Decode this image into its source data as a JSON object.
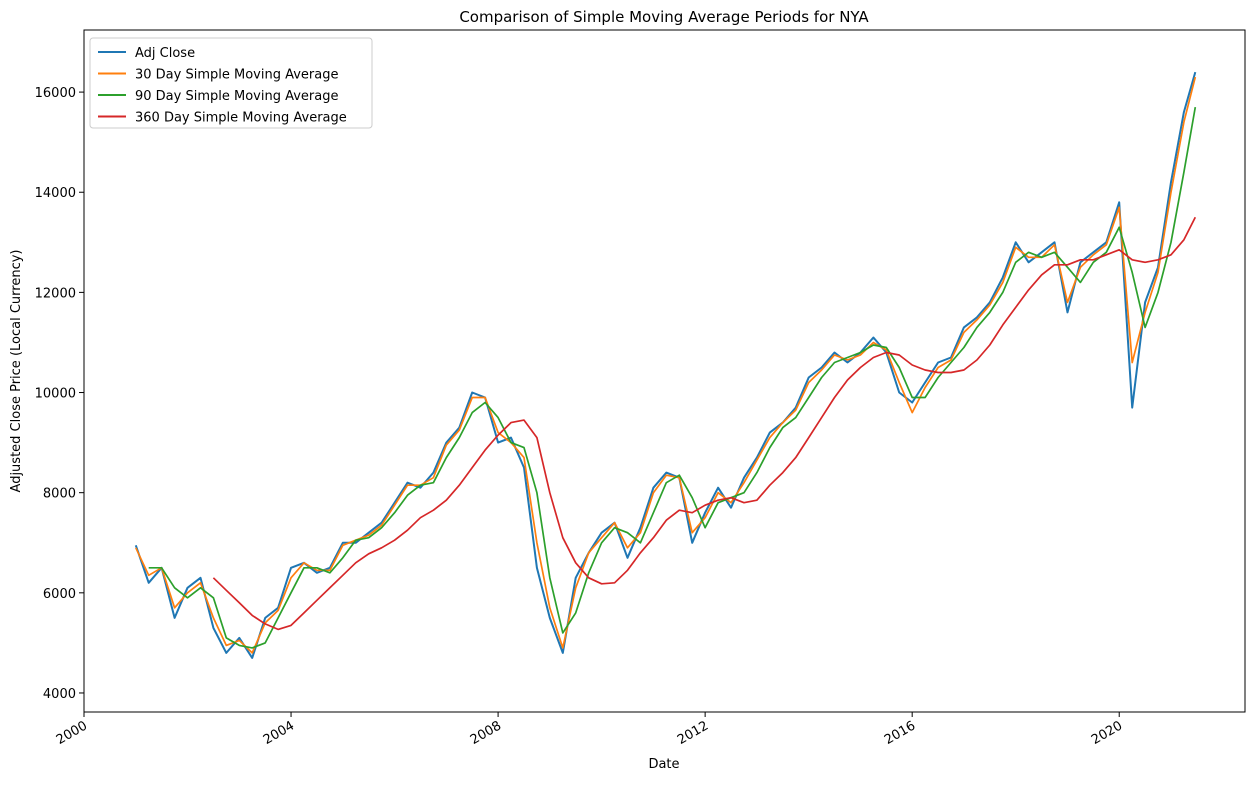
{
  "chart_data": {
    "type": "line",
    "title": "Comparison of Simple Moving Average Periods for NYA",
    "xlabel": "Date",
    "ylabel": "Adjusted Close Price (Local Currency)",
    "x": [
      2001,
      2001.25,
      2001.5,
      2001.75,
      2002,
      2002.25,
      2002.5,
      2002.75,
      2003,
      2003.25,
      2003.5,
      2003.75,
      2004,
      2004.25,
      2004.5,
      2004.75,
      2005,
      2005.25,
      2005.5,
      2005.75,
      2006,
      2006.25,
      2006.5,
      2006.75,
      2007,
      2007.25,
      2007.5,
      2007.75,
      2008,
      2008.25,
      2008.5,
      2008.75,
      2009,
      2009.25,
      2009.5,
      2009.75,
      2010,
      2010.25,
      2010.5,
      2010.75,
      2011,
      2011.25,
      2011.5,
      2011.75,
      2012,
      2012.25,
      2012.5,
      2012.75,
      2013,
      2013.25,
      2013.5,
      2013.75,
      2014,
      2014.25,
      2014.5,
      2014.75,
      2015,
      2015.25,
      2015.5,
      2015.75,
      2016,
      2016.25,
      2016.5,
      2016.75,
      2017,
      2017.25,
      2017.5,
      2017.75,
      2018,
      2018.25,
      2018.5,
      2018.75,
      2019,
      2019.25,
      2019.5,
      2019.75,
      2020,
      2020.25,
      2020.5,
      2020.75,
      2021,
      2021.25,
      2021.47
    ],
    "series": [
      {
        "name": "Adj Close",
        "color": "#1f77b4",
        "values": [
          6950,
          6200,
          6500,
          5500,
          6100,
          6300,
          5300,
          4800,
          5100,
          4700,
          5500,
          5700,
          6500,
          6600,
          6400,
          6500,
          7000,
          7000,
          7200,
          7400,
          7800,
          8200,
          8100,
          8400,
          9000,
          9300,
          10000,
          9900,
          9000,
          9100,
          8500,
          6500,
          5500,
          4800,
          6300,
          6800,
          7200,
          7400,
          6700,
          7300,
          8100,
          8400,
          8300,
          7000,
          7600,
          8100,
          7700,
          8300,
          8700,
          9200,
          9400,
          9700,
          10300,
          10500,
          10800,
          10600,
          10800,
          11100,
          10800,
          10000,
          9800,
          10200,
          10600,
          10700,
          11300,
          11500,
          11800,
          12300,
          13000,
          12600,
          12800,
          13000,
          11600,
          12600,
          12800,
          13000,
          13800,
          9700,
          11800,
          12500,
          14200,
          15600,
          16400
        ]
      },
      {
        "name": "30 Day Simple Moving Average",
        "color": "#ff7f0e",
        "values": [
          6900,
          6350,
          6500,
          5700,
          6000,
          6200,
          5500,
          4950,
          5050,
          4800,
          5400,
          5650,
          6300,
          6600,
          6450,
          6450,
          6950,
          7050,
          7150,
          7350,
          7750,
          8150,
          8150,
          8300,
          8950,
          9250,
          9900,
          9900,
          9200,
          9000,
          8700,
          7000,
          5700,
          4900,
          6100,
          6800,
          7100,
          7400,
          6900,
          7200,
          8000,
          8350,
          8300,
          7200,
          7500,
          8000,
          7800,
          8200,
          8650,
          9100,
          9400,
          9650,
          10200,
          10450,
          10750,
          10650,
          10750,
          11000,
          10850,
          10200,
          9600,
          10100,
          10500,
          10650,
          11200,
          11450,
          11750,
          12200,
          12900,
          12700,
          12700,
          12950,
          11800,
          12500,
          12750,
          12950,
          13700,
          10600,
          11600,
          12400,
          14000,
          15400,
          16300
        ]
      },
      {
        "name": "90 Day Simple Moving Average",
        "color": "#2ca02c",
        "values": [
          null,
          6500,
          6500,
          6100,
          5900,
          6100,
          5900,
          5100,
          4950,
          4900,
          5000,
          5500,
          6000,
          6500,
          6500,
          6400,
          6700,
          7050,
          7100,
          7300,
          7600,
          7950,
          8150,
          8200,
          8700,
          9100,
          9600,
          9800,
          9500,
          9000,
          8900,
          8000,
          6300,
          5200,
          5600,
          6400,
          7000,
          7300,
          7200,
          7000,
          7600,
          8200,
          8350,
          7900,
          7300,
          7800,
          7900,
          8000,
          8400,
          8900,
          9300,
          9500,
          9900,
          10300,
          10600,
          10700,
          10800,
          10950,
          10900,
          10500,
          9900,
          9900,
          10300,
          10600,
          10900,
          11300,
          11600,
          12000,
          12600,
          12800,
          12700,
          12800,
          12500,
          12200,
          12600,
          12800,
          13300,
          12400,
          11300,
          12000,
          13000,
          14400,
          15700
        ]
      },
      {
        "name": "360 Day Simple Moving Average",
        "color": "#d62728",
        "values": [
          null,
          null,
          null,
          null,
          null,
          null,
          6300,
          6050,
          5800,
          5550,
          5380,
          5270,
          5350,
          5600,
          5850,
          6100,
          6350,
          6600,
          6780,
          6900,
          7050,
          7250,
          7500,
          7650,
          7850,
          8150,
          8500,
          8850,
          9150,
          9400,
          9450,
          9100,
          8000,
          7100,
          6600,
          6300,
          6180,
          6200,
          6450,
          6800,
          7100,
          7450,
          7650,
          7600,
          7750,
          7850,
          7900,
          7800,
          7850,
          8150,
          8400,
          8700,
          9100,
          9500,
          9900,
          10250,
          10500,
          10700,
          10800,
          10750,
          10550,
          10450,
          10400,
          10400,
          10450,
          10650,
          10950,
          11350,
          11700,
          12050,
          12350,
          12550,
          12550,
          12650,
          12650,
          12750,
          12850,
          12650,
          12600,
          12650,
          12750,
          13050,
          13500
        ]
      }
    ],
    "xlim": [
      2000,
      2022.43
    ],
    "xticks": [
      2000,
      2004,
      2008,
      2012,
      2016,
      2020
    ],
    "ylim": [
      3620,
      17240
    ],
    "yticks": [
      4000,
      6000,
      8000,
      10000,
      12000,
      14000,
      16000
    ],
    "grid": false,
    "legend": "upper left"
  }
}
